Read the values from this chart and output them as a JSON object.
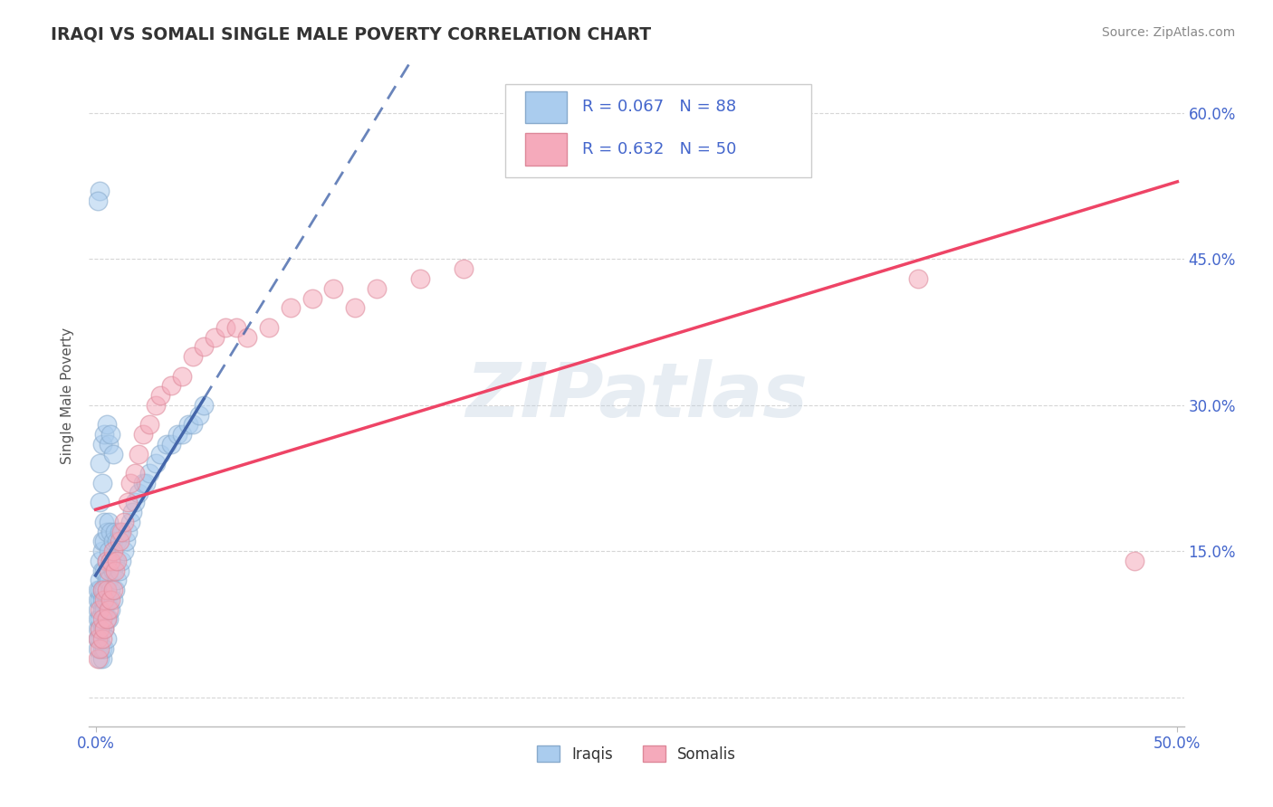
{
  "title": "IRAQI VS SOMALI SINGLE MALE POVERTY CORRELATION CHART",
  "source": "Source: ZipAtlas.com",
  "ylabel": "Single Male Poverty",
  "xlim": [
    -0.003,
    0.503
  ],
  "ylim": [
    -0.03,
    0.65
  ],
  "xtick_positions": [
    0.0,
    0.5
  ],
  "xtick_labels": [
    "0.0%",
    "50.0%"
  ],
  "yticks": [
    0.0,
    0.15,
    0.3,
    0.45,
    0.6
  ],
  "ytick_labels": [
    "",
    "15.0%",
    "30.0%",
    "45.0%",
    "60.0%"
  ],
  "background_color": "#ffffff",
  "watermark": "ZIPatlas",
  "iraqi_color": "#aaccee",
  "somali_color": "#f5aabb",
  "iraqi_edge_color": "#88aacc",
  "somali_edge_color": "#dd8899",
  "iraqi_line_color": "#4466aa",
  "somali_line_color": "#ee4466",
  "title_color": "#333333",
  "axis_tick_color": "#4466cc",
  "grid_color": "#cccccc",
  "ylabel_color": "#555555",
  "source_color": "#888888",
  "legend_text_color": "#4466cc",
  "bottom_legend_labels": [
    "Iraqis",
    "Somalis"
  ],
  "iraqi_R": 0.067,
  "iraqi_N": 88,
  "somali_R": 0.632,
  "somali_N": 50,
  "iraqi_x": [
    0.001,
    0.001,
    0.001,
    0.001,
    0.001,
    0.001,
    0.001,
    0.002,
    0.002,
    0.002,
    0.002,
    0.002,
    0.002,
    0.002,
    0.002,
    0.003,
    0.003,
    0.003,
    0.003,
    0.003,
    0.003,
    0.003,
    0.003,
    0.003,
    0.004,
    0.004,
    0.004,
    0.004,
    0.004,
    0.004,
    0.004,
    0.005,
    0.005,
    0.005,
    0.005,
    0.005,
    0.005,
    0.006,
    0.006,
    0.006,
    0.006,
    0.006,
    0.007,
    0.007,
    0.007,
    0.007,
    0.008,
    0.008,
    0.008,
    0.009,
    0.009,
    0.009,
    0.01,
    0.01,
    0.011,
    0.011,
    0.012,
    0.013,
    0.014,
    0.015,
    0.016,
    0.017,
    0.018,
    0.02,
    0.022,
    0.023,
    0.025,
    0.028,
    0.03,
    0.033,
    0.035,
    0.038,
    0.04,
    0.043,
    0.045,
    0.048,
    0.05,
    0.002,
    0.003,
    0.002,
    0.003,
    0.004,
    0.005,
    0.006,
    0.007,
    0.008,
    0.002,
    0.001
  ],
  "iraqi_y": [
    0.05,
    0.06,
    0.07,
    0.08,
    0.09,
    0.1,
    0.11,
    0.04,
    0.06,
    0.07,
    0.08,
    0.1,
    0.11,
    0.12,
    0.14,
    0.04,
    0.05,
    0.07,
    0.09,
    0.1,
    0.11,
    0.13,
    0.15,
    0.16,
    0.05,
    0.07,
    0.09,
    0.11,
    0.13,
    0.16,
    0.18,
    0.06,
    0.08,
    0.1,
    0.12,
    0.14,
    0.17,
    0.08,
    0.1,
    0.12,
    0.15,
    0.18,
    0.09,
    0.11,
    0.14,
    0.17,
    0.1,
    0.13,
    0.16,
    0.11,
    0.14,
    0.17,
    0.12,
    0.16,
    0.13,
    0.17,
    0.14,
    0.15,
    0.16,
    0.17,
    0.18,
    0.19,
    0.2,
    0.21,
    0.22,
    0.22,
    0.23,
    0.24,
    0.25,
    0.26,
    0.26,
    0.27,
    0.27,
    0.28,
    0.28,
    0.29,
    0.3,
    0.2,
    0.22,
    0.24,
    0.26,
    0.27,
    0.28,
    0.26,
    0.27,
    0.25,
    0.52,
    0.51
  ],
  "somali_x": [
    0.001,
    0.001,
    0.002,
    0.002,
    0.002,
    0.003,
    0.003,
    0.003,
    0.004,
    0.004,
    0.005,
    0.005,
    0.005,
    0.006,
    0.006,
    0.007,
    0.007,
    0.008,
    0.008,
    0.009,
    0.01,
    0.011,
    0.012,
    0.013,
    0.015,
    0.016,
    0.018,
    0.02,
    0.022,
    0.025,
    0.028,
    0.03,
    0.035,
    0.04,
    0.045,
    0.05,
    0.055,
    0.06,
    0.065,
    0.07,
    0.08,
    0.09,
    0.1,
    0.11,
    0.12,
    0.13,
    0.15,
    0.17,
    0.48,
    0.38
  ],
  "somali_y": [
    0.04,
    0.06,
    0.05,
    0.07,
    0.09,
    0.06,
    0.08,
    0.11,
    0.07,
    0.1,
    0.08,
    0.11,
    0.14,
    0.09,
    0.13,
    0.1,
    0.14,
    0.11,
    0.15,
    0.13,
    0.14,
    0.16,
    0.17,
    0.18,
    0.2,
    0.22,
    0.23,
    0.25,
    0.27,
    0.28,
    0.3,
    0.31,
    0.32,
    0.33,
    0.35,
    0.36,
    0.37,
    0.38,
    0.38,
    0.37,
    0.38,
    0.4,
    0.41,
    0.42,
    0.4,
    0.42,
    0.43,
    0.44,
    0.14,
    0.43
  ]
}
